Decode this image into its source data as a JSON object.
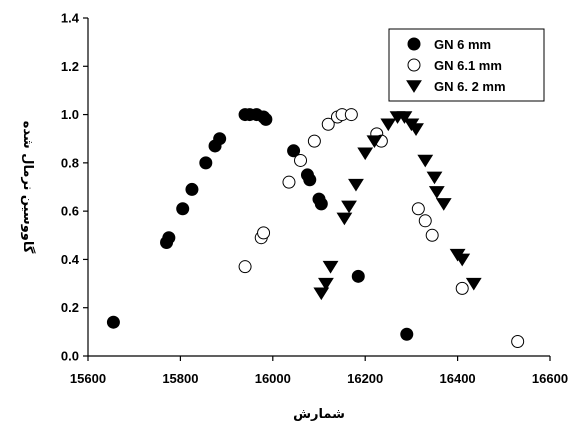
{
  "chart_data": {
    "type": "scatter",
    "title": "",
    "xlabel": "شمارش",
    "ylabel": "گاووسین نرمال شده",
    "xlim": [
      15600,
      16600
    ],
    "ylim": [
      0.0,
      1.4
    ],
    "xticks": [
      "15600",
      "15800",
      "16000",
      "16200",
      "16400",
      "16600"
    ],
    "yticks": [
      "0.0",
      "0.2",
      "0.4",
      "0.6",
      "0.8",
      "1.0",
      "1.2",
      "1.4"
    ],
    "grid": false,
    "legend_position": "top-right",
    "series": [
      {
        "name": "GN 6 mm",
        "marker": "filled-circle",
        "color": "#000000",
        "points": [
          [
            15655,
            0.14
          ],
          [
            15770,
            0.47
          ],
          [
            15775,
            0.49
          ],
          [
            15805,
            0.61
          ],
          [
            15825,
            0.69
          ],
          [
            15855,
            0.8
          ],
          [
            15875,
            0.87
          ],
          [
            15885,
            0.9
          ],
          [
            15940,
            1.0
          ],
          [
            15950,
            1.0
          ],
          [
            15965,
            1.0
          ],
          [
            15980,
            0.99
          ],
          [
            15985,
            0.98
          ],
          [
            16045,
            0.85
          ],
          [
            16075,
            0.75
          ],
          [
            16080,
            0.73
          ],
          [
            16100,
            0.65
          ],
          [
            16105,
            0.63
          ],
          [
            16185,
            0.33
          ],
          [
            16290,
            0.09
          ]
        ]
      },
      {
        "name": "GN 6.1 mm",
        "marker": "open-circle",
        "color": "#000000",
        "points": [
          [
            15940,
            0.37
          ],
          [
            15975,
            0.49
          ],
          [
            15980,
            0.51
          ],
          [
            16035,
            0.72
          ],
          [
            16060,
            0.81
          ],
          [
            16090,
            0.89
          ],
          [
            16120,
            0.96
          ],
          [
            16140,
            0.99
          ],
          [
            16150,
            1.0
          ],
          [
            16170,
            1.0
          ],
          [
            16225,
            0.92
          ],
          [
            16235,
            0.89
          ],
          [
            16315,
            0.61
          ],
          [
            16330,
            0.56
          ],
          [
            16345,
            0.5
          ],
          [
            16410,
            0.28
          ],
          [
            16530,
            0.06
          ]
        ]
      },
      {
        "name": "GN 6. 2 mm",
        "marker": "filled-triangle-down",
        "color": "#000000",
        "points": [
          [
            16105,
            0.26
          ],
          [
            16115,
            0.3
          ],
          [
            16125,
            0.37
          ],
          [
            16155,
            0.57
          ],
          [
            16165,
            0.62
          ],
          [
            16180,
            0.71
          ],
          [
            16200,
            0.84
          ],
          [
            16220,
            0.89
          ],
          [
            16250,
            0.96
          ],
          [
            16270,
            0.99
          ],
          [
            16285,
            0.99
          ],
          [
            16300,
            0.96
          ],
          [
            16310,
            0.94
          ],
          [
            16330,
            0.81
          ],
          [
            16350,
            0.74
          ],
          [
            16355,
            0.68
          ],
          [
            16370,
            0.63
          ],
          [
            16400,
            0.42
          ],
          [
            16410,
            0.4
          ],
          [
            16435,
            0.3
          ]
        ]
      }
    ]
  }
}
